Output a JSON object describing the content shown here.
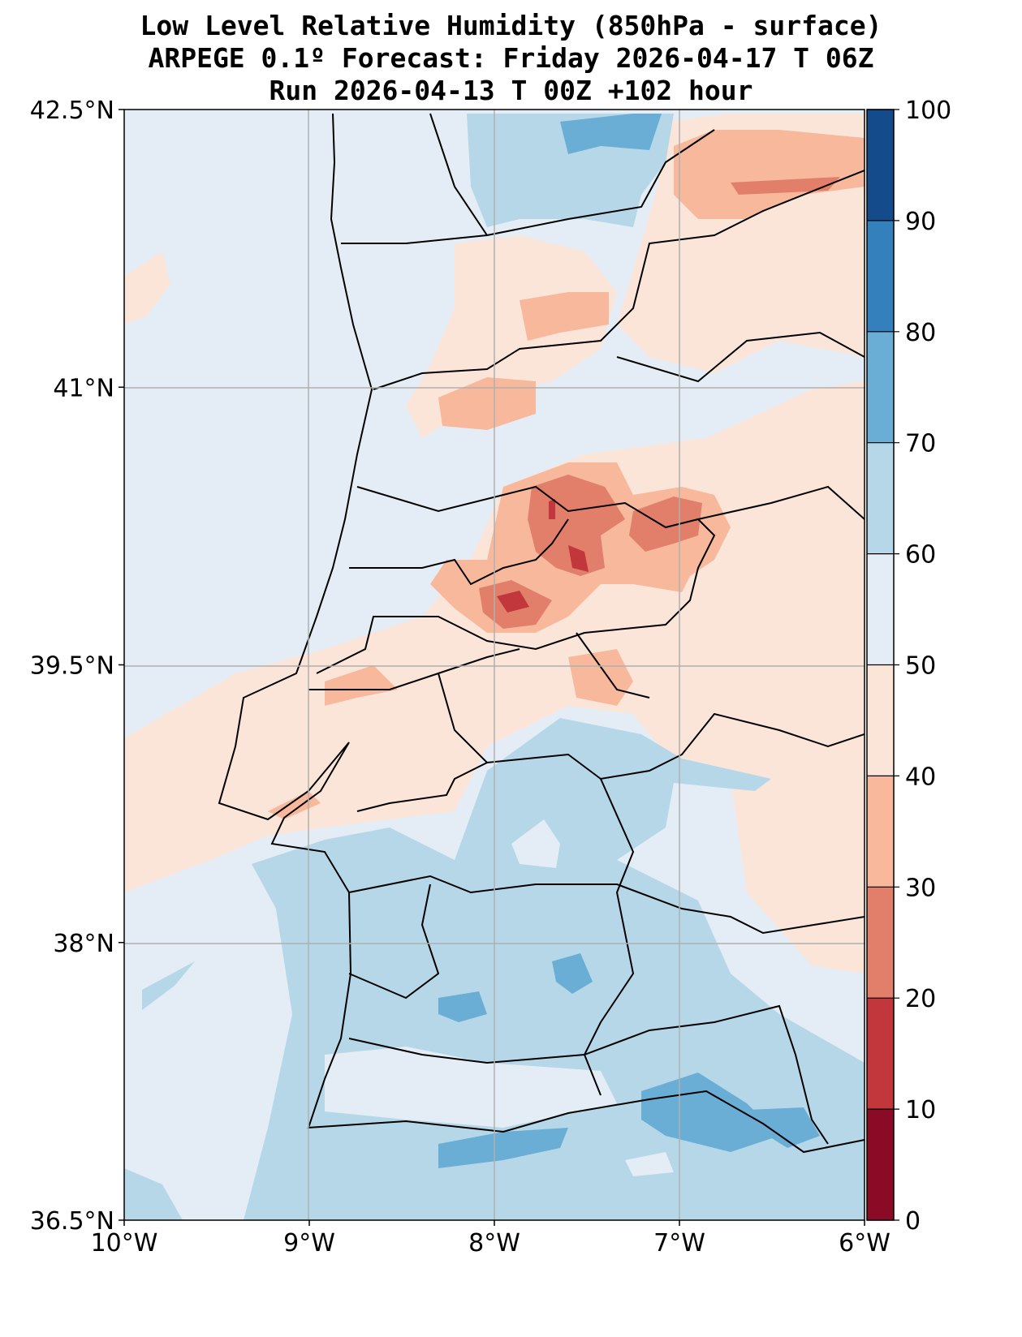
{
  "title": {
    "line1": "Low Level Relative Humidity (850hPa - surface)",
    "line2": "ARPEGE 0.1º Forecast: Friday 2026-04-17 T 06Z",
    "line3": "Run 2026-04-13 T 00Z +102 hour"
  },
  "chart_data": {
    "type": "heatmap",
    "variable": "Low Level Relative Humidity (%)",
    "lon_range": [
      -10,
      -6
    ],
    "lat_range": [
      36.5,
      42.5
    ],
    "x_ticks": [
      "10°W",
      "9°W",
      "8°W",
      "7°W",
      "6°W"
    ],
    "x_tick_values": [
      -10,
      -9,
      -8,
      -7,
      -6
    ],
    "y_ticks": [
      "42.5°N",
      "41°N",
      "39.5°N",
      "38°N",
      "36.5°N"
    ],
    "y_tick_values": [
      42.5,
      41,
      39.5,
      38,
      36.5
    ],
    "grid": true,
    "colorbar": {
      "levels": [
        0,
        10,
        20,
        30,
        40,
        50,
        60,
        70,
        80,
        90,
        100
      ],
      "colors": [
        "#8b0a26",
        "#c1373b",
        "#e27f6a",
        "#f7b89c",
        "#fbe5d9",
        "#e4edf5",
        "#b5d7e8",
        "#6aadd5",
        "#3380bc",
        "#144b8a"
      ],
      "labels": [
        "0",
        "10",
        "20",
        "30",
        "40",
        "50",
        "60",
        "70",
        "80",
        "90",
        "100"
      ]
    },
    "summary": {
      "driest_area": "central Portugal near 8°W-7.5°W, 39.7°N-40.3°N (10-20%)",
      "moistest_area": "southern Portugal / Algarve coast (70-80%)"
    }
  }
}
